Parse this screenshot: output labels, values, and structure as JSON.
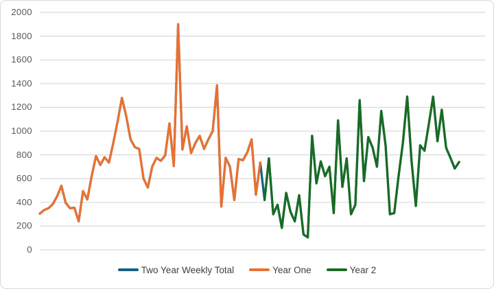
{
  "chart_data": {
    "type": "line",
    "title": "",
    "x_axis": {
      "label": "",
      "unit": "week",
      "range_weeks": [
        1,
        104
      ],
      "tick_labels_visible": false
    },
    "y_axis": {
      "label": "",
      "min": 0,
      "max": 2000,
      "tick_step": 200,
      "ticks": [
        0,
        200,
        400,
        600,
        800,
        1000,
        1200,
        1400,
        1600,
        1800,
        2000
      ],
      "tick_labels": [
        "0",
        "200",
        "400",
        "600",
        "800",
        "1000",
        "1200",
        "1400",
        "1600",
        "1800",
        "2000"
      ]
    },
    "grid": "horizontal",
    "gridline_color": "#d9d9d9",
    "legend_position": "bottom",
    "series": [
      {
        "name": "Two Year Weekly Total",
        "color": "#156082",
        "start_week": 1,
        "values": [
          305,
          335,
          350,
          385,
          450,
          540,
          395,
          350,
          355,
          240,
          495,
          425,
          620,
          790,
          715,
          780,
          735,
          900,
          1080,
          1280,
          1125,
          930,
          865,
          850,
          600,
          525,
          700,
          775,
          750,
          795,
          1065,
          705,
          1900,
          845,
          1040,
          815,
          900,
          960,
          850,
          930,
          1000,
          1385,
          365,
          775,
          700,
          420,
          765,
          755,
          820,
          930,
          465,
          735,
          420,
          770,
          300,
          380,
          185,
          480,
          320,
          240,
          460,
          130,
          105,
          960,
          560,
          745,
          620,
          700,
          310,
          1090,
          530,
          770,
          300,
          380,
          1260,
          580,
          950,
          860,
          700,
          1170,
          880,
          300,
          310,
          620,
          900,
          1290,
          750,
          370,
          880,
          835,
          1060,
          1290,
          915,
          1180,
          860,
          775,
          685,
          740
        ]
      },
      {
        "name": "Year One",
        "color": "#E97132",
        "start_week": 1,
        "values": [
          305,
          335,
          350,
          385,
          450,
          540,
          395,
          350,
          355,
          240,
          495,
          425,
          620,
          790,
          715,
          780,
          735,
          900,
          1080,
          1280,
          1125,
          930,
          865,
          850,
          600,
          525,
          700,
          775,
          750,
          795,
          1065,
          705,
          1900,
          845,
          1040,
          815,
          900,
          960,
          850,
          930,
          1000,
          1385,
          365,
          775,
          700,
          420,
          765,
          755,
          820,
          930,
          465,
          735
        ]
      },
      {
        "name": "Year 2",
        "color": "#196B24",
        "start_week": 53,
        "values": [
          420,
          770,
          300,
          380,
          185,
          480,
          320,
          240,
          460,
          130,
          105,
          960,
          560,
          745,
          620,
          700,
          310,
          1090,
          530,
          770,
          300,
          380,
          1260,
          580,
          950,
          860,
          700,
          1170,
          880,
          300,
          310,
          620,
          900,
          1290,
          750,
          370,
          880,
          835,
          1060,
          1290,
          915,
          1180,
          860,
          775,
          685,
          740
        ]
      }
    ]
  },
  "legend": {
    "items": [
      {
        "label": "Two Year Weekly Total",
        "color": "#156082"
      },
      {
        "label": "Year One",
        "color": "#E97132"
      },
      {
        "label": "Year 2",
        "color": "#196B24"
      }
    ]
  }
}
